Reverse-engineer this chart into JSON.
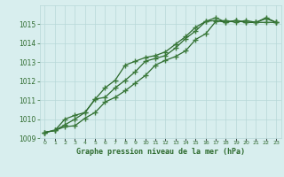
{
  "x": [
    0,
    1,
    2,
    3,
    4,
    5,
    6,
    7,
    8,
    9,
    10,
    11,
    12,
    13,
    14,
    15,
    16,
    17,
    18,
    19,
    20,
    21,
    22,
    23
  ],
  "series1": [
    1009.3,
    1009.4,
    1009.6,
    1009.65,
    1010.05,
    1010.35,
    1010.9,
    1011.15,
    1011.5,
    1011.9,
    1012.3,
    1012.85,
    1013.1,
    1013.3,
    1013.6,
    1014.2,
    1014.5,
    1015.15,
    1015.2,
    1015.1,
    1015.2,
    1015.1,
    1015.1,
    1015.1
  ],
  "series2": [
    1009.3,
    1009.4,
    1010.0,
    1010.2,
    1010.35,
    1011.05,
    1011.15,
    1011.65,
    1012.05,
    1012.5,
    1013.05,
    1013.2,
    1013.35,
    1013.75,
    1014.25,
    1014.65,
    1015.15,
    1015.2,
    1015.1,
    1015.2,
    1015.1,
    1015.1,
    1015.3,
    1015.1
  ],
  "series3": [
    1009.3,
    1009.4,
    1009.7,
    1010.0,
    1010.35,
    1011.05,
    1011.65,
    1012.05,
    1012.85,
    1013.05,
    1013.25,
    1013.35,
    1013.55,
    1013.95,
    1014.35,
    1014.85,
    1015.15,
    1015.35,
    1015.1,
    1015.2,
    1015.1,
    1015.1,
    1015.35,
    1015.1
  ],
  "line_color": "#2d6a2d",
  "marker_color": "#3a7a3a",
  "bg_color": "#d8eeee",
  "grid_color": "#b8d8d8",
  "text_color": "#2d6a2d",
  "xlabel": "Graphe pression niveau de la mer (hPa)",
  "ylim_min": 1009,
  "ylim_max": 1016,
  "yticks": [
    1009,
    1010,
    1011,
    1012,
    1013,
    1014,
    1015
  ],
  "xlim_min": -0.5,
  "xlim_max": 23.5
}
